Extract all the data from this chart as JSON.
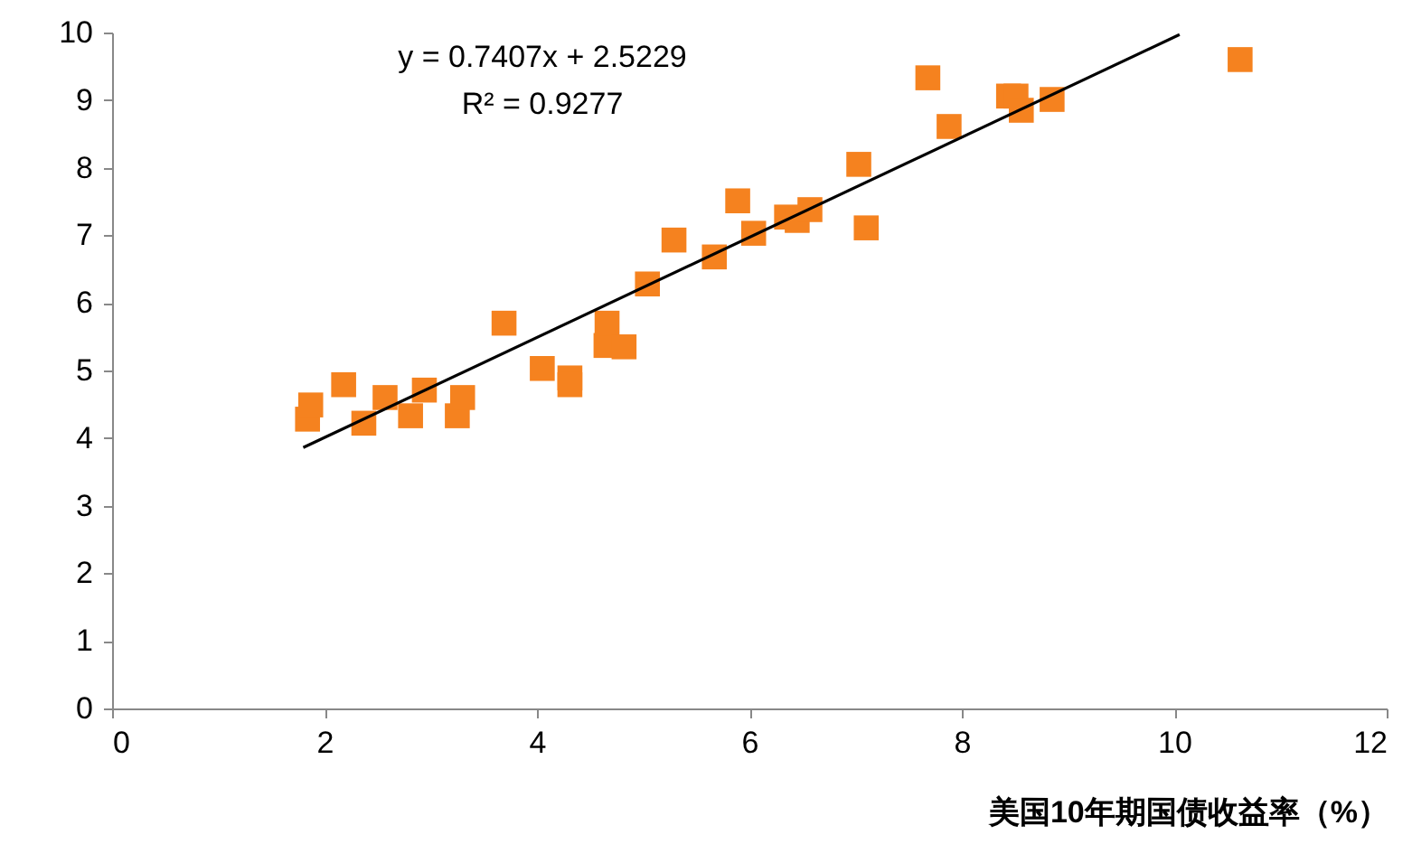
{
  "chart_data": {
    "type": "scatter",
    "xlabel": "美国10年期国债收益率（%）",
    "annotations": [
      "y = 0.7407x + 2.5229",
      "R² = 0.9277"
    ],
    "xlim": [
      0,
      12
    ],
    "xticks": [
      0,
      2,
      4,
      6,
      8,
      10,
      12
    ],
    "ylim": [
      0,
      10
    ],
    "yticks": [
      0,
      1,
      2,
      3,
      4,
      5,
      6,
      7,
      8,
      9,
      10
    ],
    "grid": false,
    "marker": "square",
    "series": [
      {
        "color": "#f5821f",
        "x": [
          1.84,
          1.87,
          2.18,
          2.37,
          2.57,
          2.81,
          2.94,
          3.25,
          3.3,
          3.69,
          4.05,
          4.31,
          4.31,
          4.65,
          4.66,
          4.82,
          5.04,
          5.29,
          5.67,
          5.89,
          6.04,
          6.35,
          6.45,
          6.57,
          7.03,
          7.1,
          7.68,
          7.88,
          8.44,
          8.51,
          8.56,
          8.85,
          10.62
        ],
        "values": [
          4.28,
          4.49,
          4.79,
          4.22,
          4.6,
          4.33,
          4.71,
          4.33,
          4.6,
          5.7,
          5.03,
          4.89,
          4.79,
          5.37,
          5.7,
          5.35,
          6.28,
          6.93,
          6.68,
          7.51,
          7.03,
          7.27,
          7.22,
          7.38,
          8.05,
          7.11,
          9.33,
          8.61,
          9.06,
          9.06,
          8.85,
          9.01,
          9.6
        ]
      },
      {
        "type": "line",
        "marker": "none",
        "color": "#000000",
        "x": [
          1.8,
          10.05
        ],
        "values": [
          3.86,
          9.97
        ]
      }
    ]
  }
}
